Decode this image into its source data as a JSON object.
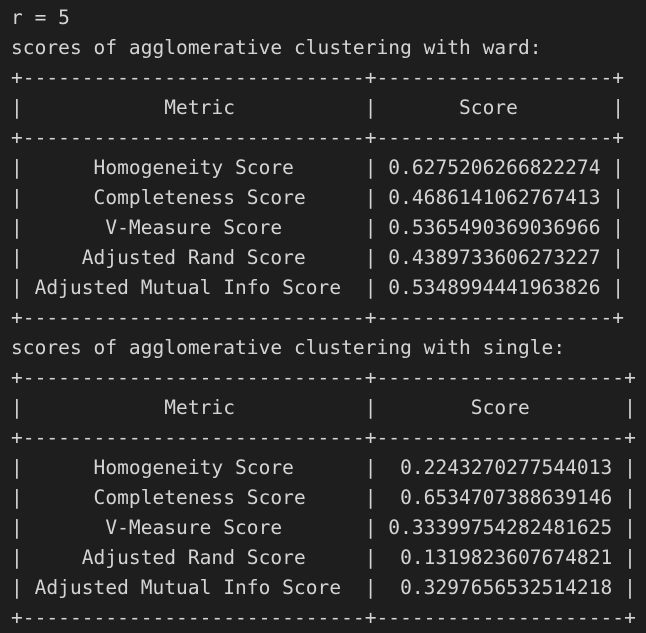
{
  "terminal": {
    "lines": [
      "r = 5",
      "scores of agglomerative clustering with ward:",
      "+-----------------------------+--------------------+",
      "|            Metric           |       Score        |",
      "+-----------------------------+--------------------+",
      "|      Homogeneity Score      | 0.6275206266822274 |",
      "|      Completeness Score     | 0.4686141062767413 |",
      "|       V-Measure Score       | 0.5365490369036966 |",
      "|     Adjusted Rand Score     | 0.4389733606273227 |",
      "| Adjusted Mutual Info Score  | 0.5348994441963826 |",
      "+-----------------------------+--------------------+",
      "scores of agglomerative clustering with single:",
      "+-----------------------------+---------------------+",
      "|            Metric           |        Score        |",
      "+-----------------------------+---------------------+",
      "|      Homogeneity Score      |  0.2243270277544013 |",
      "|      Completeness Score     |  0.6534707388639146 |",
      "|       V-Measure Score       | 0.33399754282481625 |",
      "|     Adjusted Rand Score     |  0.1319823607674821 |",
      "| Adjusted Mutual Info Score  |  0.3297656532514218 |",
      "+-----------------------------+---------------------+"
    ]
  }
}
